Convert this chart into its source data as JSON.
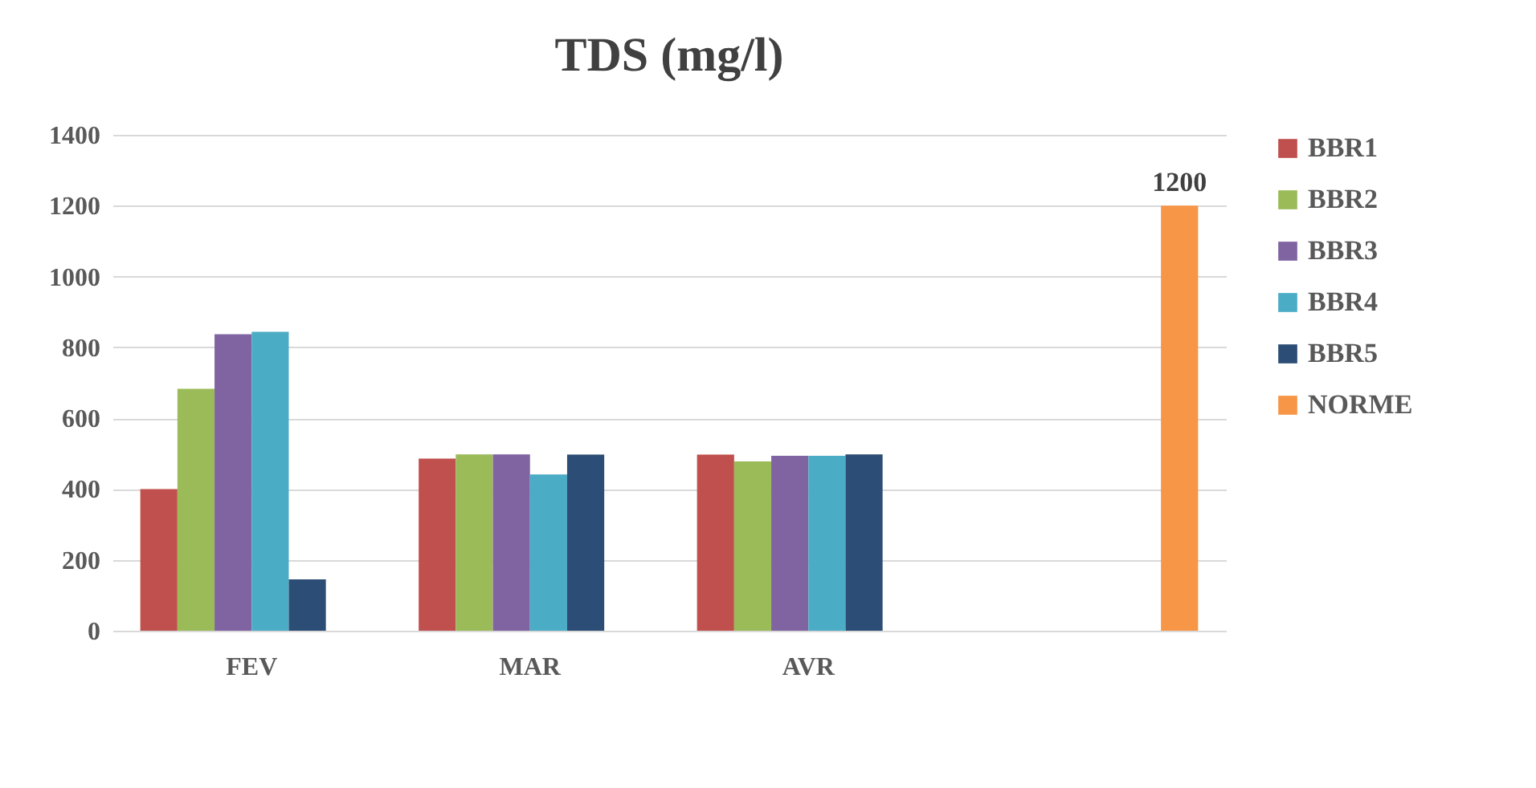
{
  "chart_data": {
    "type": "bar",
    "title": "TDS (mg/l)",
    "categories": [
      "FEV",
      "MAR",
      "AVR",
      null
    ],
    "series": [
      {
        "name": "BBR1",
        "color": "#c0504d",
        "values": [
          400,
          486,
          497,
          null
        ]
      },
      {
        "name": "BBR2",
        "color": "#9bbb59",
        "values": [
          683,
          498,
          478,
          null
        ]
      },
      {
        "name": "BBR3",
        "color": "#8064a2",
        "values": [
          837,
          498,
          494,
          null
        ]
      },
      {
        "name": "BBR4",
        "color": "#4bacc6",
        "values": [
          844,
          441,
          494,
          null
        ]
      },
      {
        "name": "BBR5",
        "color": "#2c4d75",
        "values": [
          145,
          497,
          498,
          null
        ]
      },
      {
        "name": "NORME",
        "color": "#f79646",
        "values": [
          null,
          null,
          null,
          1200
        ],
        "value_labels": [
          null,
          null,
          null,
          "1200"
        ]
      }
    ],
    "ylim": [
      0,
      1400
    ],
    "yticks": [
      0,
      200,
      400,
      600,
      800,
      1000,
      1200,
      1400
    ],
    "grid": "y",
    "legend": "right"
  }
}
